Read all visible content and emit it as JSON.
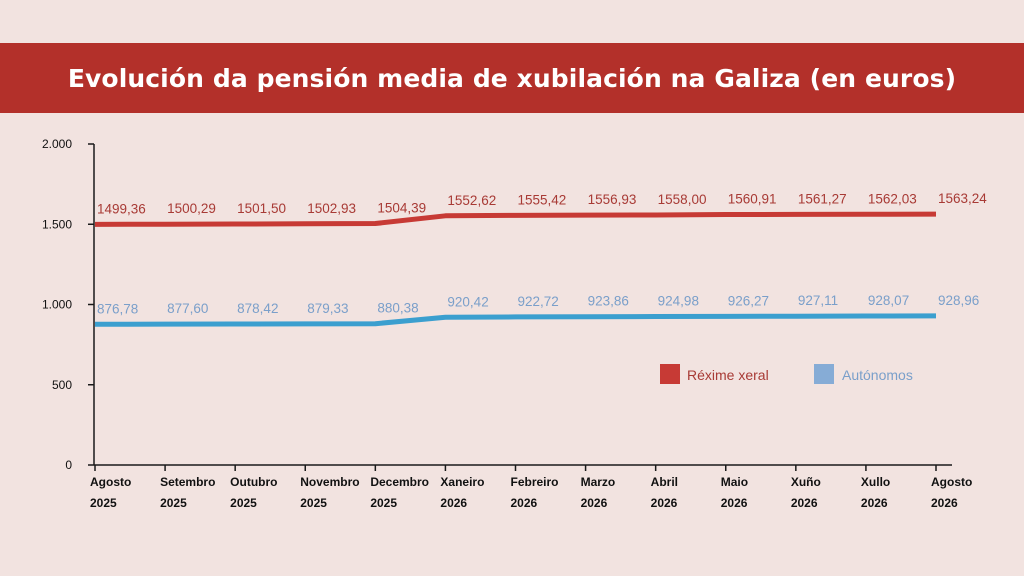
{
  "title": "Evolución da pensión media de xubilación na Galiza (en euros)",
  "chart_data": {
    "type": "line",
    "title": "Evolución da pensión media de xubilación na Galiza (en euros)",
    "categories": [
      [
        "Agosto",
        "2025"
      ],
      [
        "Setembro",
        "2025"
      ],
      [
        "Outubro",
        "2025"
      ],
      [
        "Novembro",
        "2025"
      ],
      [
        "Decembro",
        "2025"
      ],
      [
        "Xaneiro",
        "2026"
      ],
      [
        "Febreiro",
        "2026"
      ],
      [
        "Marzo",
        "2026"
      ],
      [
        "Abril",
        "2026"
      ],
      [
        "Maio",
        "2026"
      ],
      [
        "Xuño",
        "2026"
      ],
      [
        "Xullo",
        "2026"
      ],
      [
        "Agosto",
        "2026"
      ]
    ],
    "yticks": [
      {
        "value": 0,
        "label": "0"
      },
      {
        "value": 500,
        "label": "500"
      },
      {
        "value": 1000,
        "label": "1.000"
      },
      {
        "value": 1500,
        "label": "1.500"
      },
      {
        "value": 2000,
        "label": "2.000"
      }
    ],
    "ylim": [
      0,
      2000
    ],
    "grid": false,
    "legend_position": "right",
    "series": [
      {
        "name": "Réxime xeral",
        "color": "#c73a35",
        "label_color": "#a83a35",
        "values": [
          1499.36,
          1500.29,
          1501.5,
          1502.93,
          1504.39,
          1552.62,
          1555.42,
          1556.93,
          1558.0,
          1560.91,
          1561.27,
          1562.03,
          1563.24
        ],
        "labels": [
          "1499,36",
          "1500,29",
          "1501,50",
          "1502,93",
          "1504,39",
          "1552,62",
          "1555,42",
          "1556,93",
          "1558,00",
          "1560,91",
          "1561,27",
          "1562,03",
          "1563,24"
        ]
      },
      {
        "name": "Autónomos",
        "color": "#3b9fcf",
        "label_color": "#7a9fca",
        "legend_color": "#86acd6",
        "values": [
          876.78,
          877.6,
          878.42,
          879.33,
          880.38,
          920.42,
          922.72,
          923.86,
          924.98,
          926.27,
          927.11,
          928.07,
          928.96
        ],
        "labels": [
          "876,78",
          "877,60",
          "878,42",
          "879,33",
          "880,38",
          "920,42",
          "922,72",
          "923,86",
          "924,98",
          "926,27",
          "927,11",
          "928,07",
          "928,96"
        ]
      }
    ]
  }
}
